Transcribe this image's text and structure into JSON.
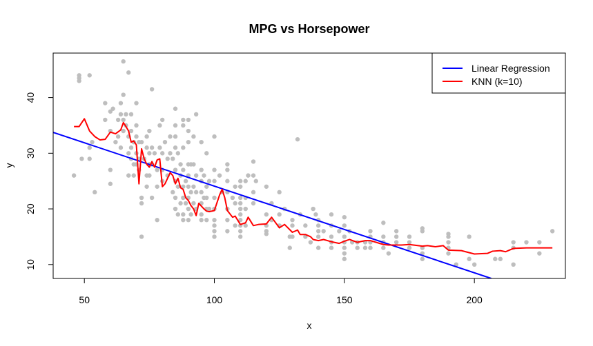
{
  "chart_data": {
    "type": "scatter",
    "title": "MPG vs Horsepower",
    "xlabel": "x",
    "ylabel": "y",
    "xlim": [
      38,
      235
    ],
    "ylim": [
      7.5,
      48
    ],
    "xticks": [
      50,
      100,
      150,
      200
    ],
    "yticks": [
      10,
      20,
      30,
      40
    ],
    "grid": false,
    "legend": {
      "placement": "top-right",
      "entries": [
        {
          "name": "Linear Regression",
          "color": "#0000ff"
        },
        {
          "name": "KNN (k=10)",
          "color": "#ff0000"
        }
      ]
    },
    "colors": {
      "points": "#bebebe",
      "regression": "#0000ff",
      "knn": "#ff0000"
    },
    "points": [
      [
        46,
        26
      ],
      [
        48,
        43
      ],
      [
        48,
        44
      ],
      [
        48,
        43.5
      ],
      [
        49,
        29
      ],
      [
        52,
        44
      ],
      [
        52,
        31
      ],
      [
        52,
        29
      ],
      [
        53,
        32
      ],
      [
        54,
        23
      ],
      [
        58,
        39
      ],
      [
        58,
        36
      ],
      [
        60,
        37.5
      ],
      [
        60,
        34
      ],
      [
        60,
        27
      ],
      [
        60,
        24.5
      ],
      [
        61,
        38
      ],
      [
        62,
        32
      ],
      [
        63,
        36
      ],
      [
        63,
        33
      ],
      [
        64,
        37
      ],
      [
        64,
        39
      ],
      [
        64,
        31
      ],
      [
        65,
        46.5
      ],
      [
        65,
        40.5
      ],
      [
        65,
        36
      ],
      [
        65,
        34
      ],
      [
        66,
        35
      ],
      [
        66,
        37
      ],
      [
        67,
        44.5
      ],
      [
        67,
        33
      ],
      [
        67,
        30
      ],
      [
        67,
        26
      ],
      [
        68,
        37
      ],
      [
        68,
        34
      ],
      [
        68,
        31
      ],
      [
        68,
        29
      ],
      [
        69,
        32
      ],
      [
        69,
        28
      ],
      [
        69,
        26
      ],
      [
        70,
        39
      ],
      [
        70,
        35
      ],
      [
        70,
        33
      ],
      [
        70,
        30
      ],
      [
        70,
        28
      ],
      [
        71,
        32
      ],
      [
        71,
        29
      ],
      [
        71,
        27
      ],
      [
        72,
        32
      ],
      [
        72,
        22
      ],
      [
        72,
        21
      ],
      [
        72,
        15
      ],
      [
        73,
        29
      ],
      [
        74,
        33
      ],
      [
        74,
        31
      ],
      [
        74,
        26
      ],
      [
        74,
        24
      ],
      [
        75,
        34
      ],
      [
        75,
        30
      ],
      [
        75,
        28
      ],
      [
        75,
        26
      ],
      [
        76,
        41.5
      ],
      [
        76,
        31
      ],
      [
        76,
        28
      ],
      [
        76,
        22
      ],
      [
        77,
        30
      ],
      [
        78,
        27
      ],
      [
        78,
        24
      ],
      [
        78,
        18
      ],
      [
        79,
        35
      ],
      [
        79,
        31
      ],
      [
        80,
        36
      ],
      [
        80,
        30
      ],
      [
        80,
        27
      ],
      [
        80,
        25
      ],
      [
        81,
        32
      ],
      [
        82,
        29
      ],
      [
        82,
        26
      ],
      [
        83,
        33
      ],
      [
        83,
        30
      ],
      [
        84,
        29
      ],
      [
        84,
        23
      ],
      [
        85,
        38
      ],
      [
        85,
        35
      ],
      [
        85,
        33
      ],
      [
        85,
        31
      ],
      [
        85,
        27
      ],
      [
        85,
        25
      ],
      [
        85,
        22
      ],
      [
        85,
        20
      ],
      [
        86,
        30
      ],
      [
        86,
        24
      ],
      [
        86,
        19
      ],
      [
        87,
        28
      ],
      [
        87,
        26
      ],
      [
        87,
        21
      ],
      [
        88,
        36
      ],
      [
        88,
        35
      ],
      [
        88,
        31
      ],
      [
        88,
        27
      ],
      [
        88,
        24
      ],
      [
        88,
        22
      ],
      [
        88,
        19
      ],
      [
        88,
        18
      ],
      [
        89,
        25
      ],
      [
        89,
        21
      ],
      [
        90,
        36
      ],
      [
        90,
        34
      ],
      [
        90,
        32
      ],
      [
        90,
        28
      ],
      [
        90,
        26
      ],
      [
        90,
        24
      ],
      [
        90,
        22
      ],
      [
        90,
        20
      ],
      [
        90,
        18
      ],
      [
        91,
        28
      ],
      [
        91,
        23
      ],
      [
        91,
        19
      ],
      [
        92,
        33
      ],
      [
        92,
        28
      ],
      [
        92,
        24
      ],
      [
        92,
        21
      ],
      [
        93,
        37
      ],
      [
        93,
        26
      ],
      [
        93,
        23
      ],
      [
        93,
        20
      ],
      [
        95,
        32
      ],
      [
        95,
        27
      ],
      [
        95,
        25
      ],
      [
        95,
        23
      ],
      [
        95,
        21
      ],
      [
        95,
        19
      ],
      [
        95,
        18
      ],
      [
        96,
        26
      ],
      [
        96,
        22
      ],
      [
        97,
        30
      ],
      [
        97,
        24
      ],
      [
        97,
        22
      ],
      [
        97,
        20
      ],
      [
        97,
        18
      ],
      [
        98,
        25
      ],
      [
        98,
        20
      ],
      [
        100,
        33
      ],
      [
        100,
        27
      ],
      [
        100,
        25
      ],
      [
        100,
        22
      ],
      [
        100,
        20
      ],
      [
        100,
        18
      ],
      [
        100,
        17
      ],
      [
        100,
        16
      ],
      [
        100,
        15
      ],
      [
        102,
        26
      ],
      [
        103,
        23
      ],
      [
        105,
        28
      ],
      [
        105,
        27
      ],
      [
        105,
        25
      ],
      [
        105,
        23
      ],
      [
        105,
        20
      ],
      [
        105,
        18
      ],
      [
        105,
        16
      ],
      [
        107,
        22
      ],
      [
        108,
        24
      ],
      [
        108,
        21
      ],
      [
        108,
        17
      ],
      [
        110,
        25
      ],
      [
        110,
        24
      ],
      [
        110,
        22
      ],
      [
        110,
        21
      ],
      [
        110,
        20
      ],
      [
        110,
        19
      ],
      [
        110,
        18
      ],
      [
        110,
        17
      ],
      [
        110,
        16
      ],
      [
        110,
        15
      ],
      [
        112,
        25
      ],
      [
        112,
        22
      ],
      [
        112,
        20
      ],
      [
        112,
        17
      ],
      [
        113,
        26
      ],
      [
        115,
        28.5
      ],
      [
        115,
        26
      ],
      [
        115,
        23
      ],
      [
        115,
        21
      ],
      [
        116,
        25
      ],
      [
        120,
        24
      ],
      [
        120,
        19
      ],
      [
        120,
        17
      ],
      [
        120,
        16
      ],
      [
        120,
        15.5
      ],
      [
        122,
        21
      ],
      [
        122,
        18
      ],
      [
        125,
        23
      ],
      [
        125,
        19
      ],
      [
        125,
        17
      ],
      [
        127,
        20
      ],
      [
        129,
        15
      ],
      [
        129,
        13
      ],
      [
        130,
        18
      ],
      [
        130,
        17
      ],
      [
        130,
        15
      ],
      [
        132,
        32.5
      ],
      [
        133,
        19
      ],
      [
        135,
        17
      ],
      [
        135,
        15
      ],
      [
        137,
        14
      ],
      [
        138,
        20
      ],
      [
        139,
        19
      ],
      [
        140,
        18
      ],
      [
        140,
        17
      ],
      [
        140,
        16
      ],
      [
        140,
        15
      ],
      [
        140,
        13
      ],
      [
        142,
        16
      ],
      [
        145,
        19
      ],
      [
        145,
        17
      ],
      [
        145,
        15
      ],
      [
        145,
        14
      ],
      [
        145,
        13
      ],
      [
        148,
        16
      ],
      [
        150,
        18.5
      ],
      [
        150,
        17
      ],
      [
        150,
        15
      ],
      [
        150,
        14
      ],
      [
        150,
        13
      ],
      [
        150,
        12
      ],
      [
        150,
        11
      ],
      [
        152,
        16
      ],
      [
        153,
        14
      ],
      [
        155,
        14
      ],
      [
        155,
        13
      ],
      [
        158,
        14
      ],
      [
        158,
        13
      ],
      [
        160,
        16
      ],
      [
        160,
        15
      ],
      [
        160,
        14
      ],
      [
        160,
        13
      ],
      [
        165,
        17.5
      ],
      [
        165,
        15
      ],
      [
        165,
        14
      ],
      [
        165,
        13
      ],
      [
        167,
        12
      ],
      [
        170,
        16
      ],
      [
        170,
        15
      ],
      [
        170,
        14
      ],
      [
        175,
        15
      ],
      [
        175,
        14
      ],
      [
        175,
        13
      ],
      [
        180,
        16.5
      ],
      [
        180,
        16
      ],
      [
        180,
        13
      ],
      [
        180,
        12
      ],
      [
        180,
        11
      ],
      [
        190,
        15.5
      ],
      [
        190,
        15
      ],
      [
        190,
        14
      ],
      [
        190,
        13
      ],
      [
        190,
        12
      ],
      [
        193,
        10
      ],
      [
        198,
        15
      ],
      [
        198,
        11
      ],
      [
        200,
        10
      ],
      [
        208,
        11
      ],
      [
        210,
        11
      ],
      [
        215,
        14
      ],
      [
        215,
        13
      ],
      [
        215,
        10
      ],
      [
        220,
        14
      ],
      [
        225,
        14
      ],
      [
        225,
        12
      ],
      [
        230,
        16
      ]
    ],
    "series": [
      {
        "name": "Linear Regression",
        "type": "line",
        "x": [
          38,
          206.5
        ],
        "y": [
          33.75,
          7.5
        ]
      },
      {
        "name": "KNN (k=10)",
        "type": "line",
        "x": [
          46,
          48,
          50,
          52,
          54,
          56,
          58,
          60,
          62,
          64,
          65,
          66,
          67,
          68,
          69,
          70,
          71,
          72,
          73,
          74,
          75,
          76,
          77,
          78,
          79,
          80,
          81,
          82,
          83,
          84,
          85,
          86,
          87,
          88,
          89,
          90,
          91,
          92,
          93,
          94,
          95,
          96,
          97,
          98,
          100,
          102,
          103,
          104,
          105,
          107,
          108,
          110,
          112,
          113,
          115,
          117,
          120,
          122,
          125,
          127,
          130,
          132,
          133,
          135,
          137,
          138,
          140,
          142,
          145,
          148,
          150,
          152,
          155,
          158,
          160,
          165,
          167,
          170,
          172,
          175,
          180,
          182,
          185,
          188,
          190,
          195,
          200,
          205,
          207,
          210,
          212,
          215,
          220,
          230
        ],
        "y": [
          34.8,
          34.8,
          36.2,
          34,
          33,
          32.4,
          32.5,
          33.8,
          33.5,
          34.2,
          35.5,
          34.8,
          34,
          32,
          32.2,
          31.5,
          24.5,
          30.8,
          29,
          28,
          27.5,
          28.5,
          27.5,
          28.8,
          29,
          24,
          24.5,
          25.5,
          26.5,
          26,
          24.5,
          25.5,
          23.8,
          23.5,
          22,
          21.5,
          20.6,
          20,
          18.8,
          21,
          20.5,
          20,
          19.6,
          19.5,
          19.7,
          22.5,
          23.5,
          22,
          19.7,
          18.5,
          18.7,
          17.2,
          17.5,
          18.5,
          17,
          17.2,
          17.3,
          18.5,
          16.6,
          17.2,
          15.8,
          16.2,
          15.4,
          15.4,
          15,
          14.5,
          14.3,
          14.5,
          14.1,
          13.8,
          14.2,
          14.5,
          14,
          14.3,
          14.3,
          13.6,
          13.5,
          13.5,
          13.5,
          13.6,
          13.3,
          13.4,
          13.2,
          13.4,
          12.6,
          12.5,
          11.9,
          12,
          12.4,
          12.5,
          12.3,
          12.9,
          13,
          13
        ]
      }
    ]
  }
}
